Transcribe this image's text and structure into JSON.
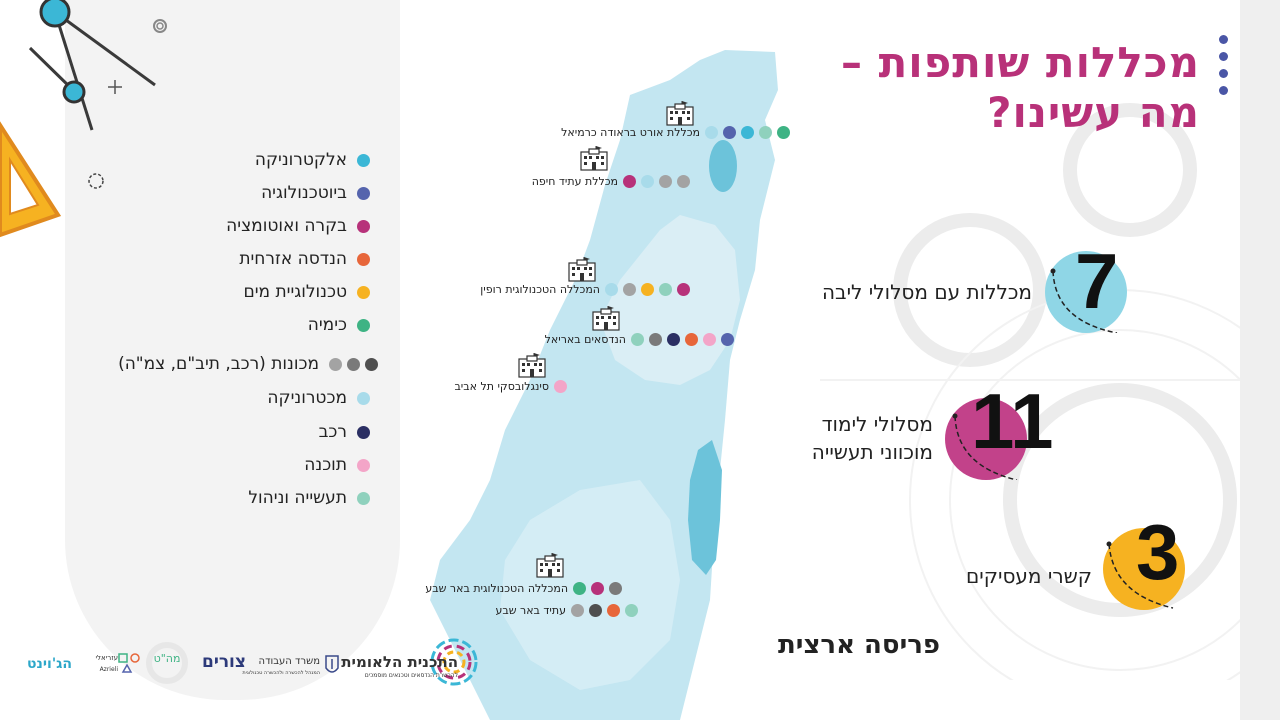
{
  "title": {
    "line1": "מכללות שותפות –",
    "line2": "מה עשינו?"
  },
  "legend": [
    {
      "label": "אלקטרוניקה",
      "colors": [
        "#3bb7d6"
      ]
    },
    {
      "label": "ביוטכנולוגיה",
      "colors": [
        "#5564ad"
      ]
    },
    {
      "label": "בקרה ואוטומציה",
      "colors": [
        "#b7327a"
      ]
    },
    {
      "label": "הנדסה אזרחית",
      "colors": [
        "#e7663a"
      ]
    },
    {
      "label": "טכנולוגיית מים",
      "colors": [
        "#f6b221"
      ]
    },
    {
      "label": "כימיה",
      "colors": [
        "#3eb384"
      ]
    },
    {
      "label": "מכונות (רכב, תיב\"ם, צמ\"ה)",
      "colors": [
        "#4f4f4f",
        "#7a7a7a",
        "#a3a3a3"
      ]
    },
    {
      "label": "מכטרוניקה",
      "colors": [
        "#a8dbea"
      ]
    },
    {
      "label": "רכב",
      "colors": [
        "#2b2f63"
      ]
    },
    {
      "label": "תוכנה",
      "colors": [
        "#f3a5c8"
      ]
    },
    {
      "label": "תעשייה וניהול",
      "colors": [
        "#8fd1bd"
      ]
    }
  ],
  "colleges": [
    {
      "name": "מכללת אורט בראודה כרמיאל",
      "colors": [
        "#3eb384",
        "#8fd1bd",
        "#3bb7d6",
        "#5564ad",
        "#a8dbea"
      ]
    },
    {
      "name": "מכללת עתיד חיפה",
      "colors": [
        "#a3a3a3",
        "#a3a3a3",
        "#a8dbea",
        "#b7327a"
      ]
    },
    {
      "name": "המכללה הטכנולוגית רופין",
      "colors": [
        "#b7327a",
        "#8fd1bd",
        "#f6b221",
        "#a3a3a3",
        "#a8dbea"
      ]
    },
    {
      "name": "הנדסאים באריאל",
      "colors": [
        "#5564ad",
        "#f3a5c8",
        "#e7663a",
        "#2b2f63",
        "#7a7a7a",
        "#8fd1bd"
      ]
    },
    {
      "name": "סינגלובסקי תל אביב",
      "colors": [
        "#f3a5c8"
      ]
    },
    {
      "name": "המכללה הטכנולוגית באר שבע",
      "colors": [
        "#7a7a7a",
        "#b7327a",
        "#3eb384"
      ]
    },
    {
      "name": "עתיד באר שבע",
      "colors": [
        "#8fd1bd",
        "#e7663a",
        "#4f4f4f",
        "#a3a3a3"
      ]
    }
  ],
  "stats": [
    {
      "number": "7",
      "label": "מכללות עם מסלולי ליבה",
      "color": "#8fd6e6"
    },
    {
      "number": "11",
      "label_line1": "מסלולי לימוד",
      "label_line2": "מוכווני תעשייה",
      "color": "#c2428a"
    },
    {
      "number": "3",
      "label": "קשרי מעסיקים",
      "color": "#f6b221"
    }
  ],
  "footer_title": "פריסה ארצית",
  "logos": {
    "national_plan": "התכנית הלאומית",
    "national_plan_sub": "להכשרת הנדסאים וטכנאים מוסמכים",
    "ministry": "משרד העבודה",
    "ministry_sub": "המנהל להכשרה ולהכשרה טכנולוגית",
    "tzurim": "צורים",
    "matash": "מה\"ט",
    "azrieli": "עזריאלי",
    "azrieli_en": "Azrieli",
    "joint": "הג'וינט"
  },
  "colors": {
    "title": "#b83179",
    "map": "#bfe5f1",
    "accent_blue": "#4a56a6"
  }
}
